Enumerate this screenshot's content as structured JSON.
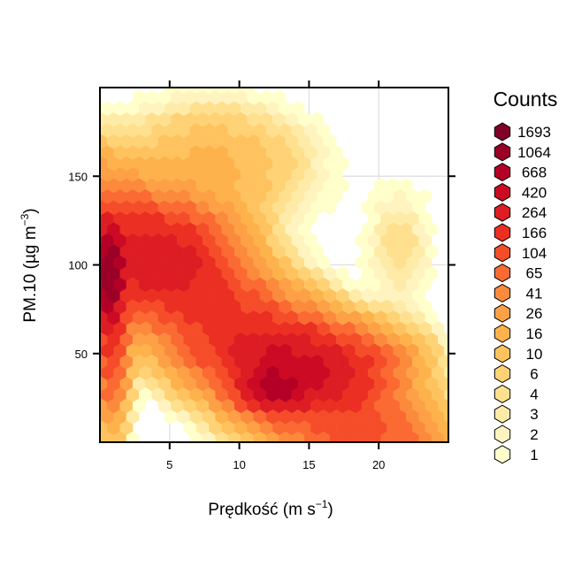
{
  "chart_data": {
    "type": "heatmap",
    "subtype": "hexbin",
    "xlabel_main": "Prędkość (m s",
    "xlabel_sup": "−1",
    "xlabel_end": ")",
    "ylabel_main": "PM.10 (µg m",
    "ylabel_sup": "−3",
    "ylabel_end": ")",
    "xlim": [
      0,
      25
    ],
    "ylim": [
      0,
      200
    ],
    "xticks": [
      5,
      10,
      15,
      20
    ],
    "yticks": [
      50,
      100,
      150
    ],
    "grid": true,
    "legend": {
      "title": "Counts",
      "position": "right",
      "labels": [
        "1693",
        "1064",
        "668",
        "420",
        "264",
        "166",
        "104",
        "65",
        "41",
        "26",
        "16",
        "10",
        "6",
        "4",
        "3",
        "2",
        "1"
      ],
      "colors": [
        "#800026",
        "#9b0026",
        "#b40026",
        "#cc0a24",
        "#dd1d23",
        "#eb2f22",
        "#f54d2a",
        "#fa6a32",
        "#fc8a3c",
        "#fda046",
        "#feb24c",
        "#fec35f",
        "#fed275",
        "#fee08f",
        "#ffeba8",
        "#fff4bf",
        "#ffffcc"
      ]
    },
    "density_peaks": [
      {
        "x": 0.6,
        "y": 95,
        "count": 1693
      },
      {
        "x": 12.3,
        "y": 28,
        "count": 1064
      },
      {
        "x": 3.5,
        "y": 105,
        "count": 420
      },
      {
        "x": 13,
        "y": 48,
        "count": 420
      },
      {
        "x": 8.5,
        "y": 85,
        "count": 264
      },
      {
        "x": 16,
        "y": 35,
        "count": 166
      }
    ]
  }
}
